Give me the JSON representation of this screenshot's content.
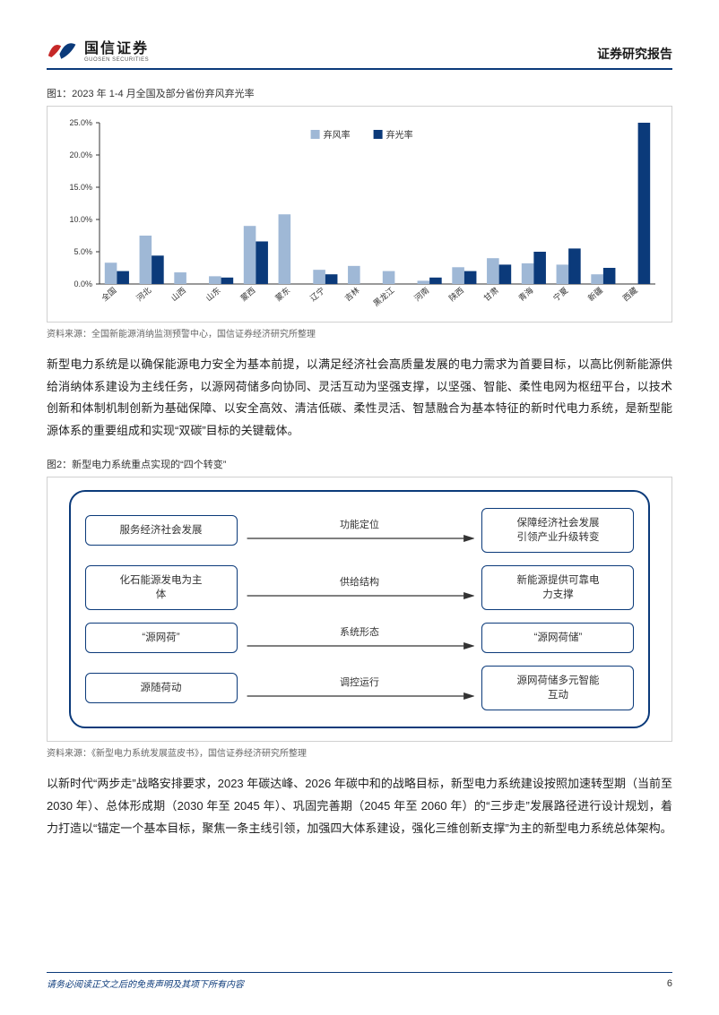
{
  "header": {
    "logo_cn": "国信证券",
    "logo_en": "GUOSEN SECURITIES",
    "right": "证券研究报告",
    "rule_color": "#0b3a7a"
  },
  "fig1": {
    "title": "图1：2023 年 1-4 月全国及部分省份弃风弃光率",
    "source": "资料来源：全国新能源消纳监测预警中心，国信证券经济研究所整理",
    "type": "bar",
    "legend": [
      "弃风率",
      "弃光率"
    ],
    "legend_colors": [
      "#9fb8d6",
      "#0b3a7a"
    ],
    "categories": [
      "全国",
      "河北",
      "山西",
      "山东",
      "蒙西",
      "蒙东",
      "辽宁",
      "吉林",
      "黑龙江",
      "河南",
      "陕西",
      "甘肃",
      "青海",
      "宁夏",
      "新疆",
      "西藏"
    ],
    "series": [
      {
        "name": "弃风率",
        "color": "#9fb8d6",
        "values": [
          3.3,
          7.5,
          1.8,
          1.2,
          9.0,
          10.8,
          2.2,
          2.8,
          2.0,
          0.5,
          2.6,
          4.0,
          3.2,
          3.0,
          1.5,
          null
        ]
      },
      {
        "name": "弃光率",
        "color": "#0b3a7a",
        "values": [
          2.0,
          4.4,
          null,
          1.0,
          6.6,
          null,
          1.5,
          null,
          null,
          1.0,
          2.0,
          3.0,
          5.0,
          5.5,
          2.5,
          25.0
        ]
      }
    ],
    "ylim": [
      0,
      25
    ],
    "ytick_step": 5,
    "ylabel_fmt_pct": true,
    "background_color": "#ffffff",
    "grid": false,
    "bar_width": 0.35,
    "axis_color": "#333333",
    "label_fontsize": 9,
    "legend_fontsize": 10
  },
  "para1": "新型电力系统是以确保能源电力安全为基本前提，以满足经济社会高质量发展的电力需求为首要目标，以高比例新能源供给消纳体系建设为主线任务，以源网荷储多向协同、灵活互动为坚强支撑，以坚强、智能、柔性电网为枢纽平台，以技术创新和体制机制创新为基础保障、以安全高效、清洁低碳、柔性灵活、智慧融合为基本特征的新时代电力系统，是新型能源体系的重要组成和实现“双碳”目标的关键载体。",
  "fig2": {
    "title": "图2：新型电力系统重点实现的“四个转变”",
    "source": "资料来源：《新型电力系统发展蓝皮书》，国信证券经济研究所整理",
    "type": "flowchart",
    "border_color": "#0b3a7a",
    "node_border_color": "#0b3a7a",
    "node_border_radius": 6,
    "arrow_color": "#333333",
    "rows": [
      {
        "left": "服务经济社会发展",
        "mid": "功能定位",
        "right": "保障经济社会发展\n引领产业升级转变"
      },
      {
        "left": "化石能源发电为主\n体",
        "mid": "供给结构",
        "right": "新能源提供可靠电\n力支撑"
      },
      {
        "left": "“源网荷”",
        "mid": "系统形态",
        "right": "“源网荷储”"
      },
      {
        "left": "源随荷动",
        "mid": "调控运行",
        "right": "源网荷储多元智能\n互动"
      }
    ]
  },
  "para2": "以新时代“两步走”战略安排要求，2023 年碳达峰、2026 年碳中和的战略目标，新型电力系统建设按照加速转型期（当前至 2030 年）、总体形成期（2030 年至 2045 年）、巩固完善期（2045 年至 2060 年）的“三步走”发展路径进行设计规划，着力打造以“锚定一个基本目标，聚焦一条主线引领，加强四大体系建设，强化三维创新支撑”为主的新型电力系统总体架构。",
  "footer": {
    "disclaimer": "请务必阅读正文之后的免责声明及其项下所有内容",
    "page": "6",
    "rule_color": "#0b3a7a"
  }
}
